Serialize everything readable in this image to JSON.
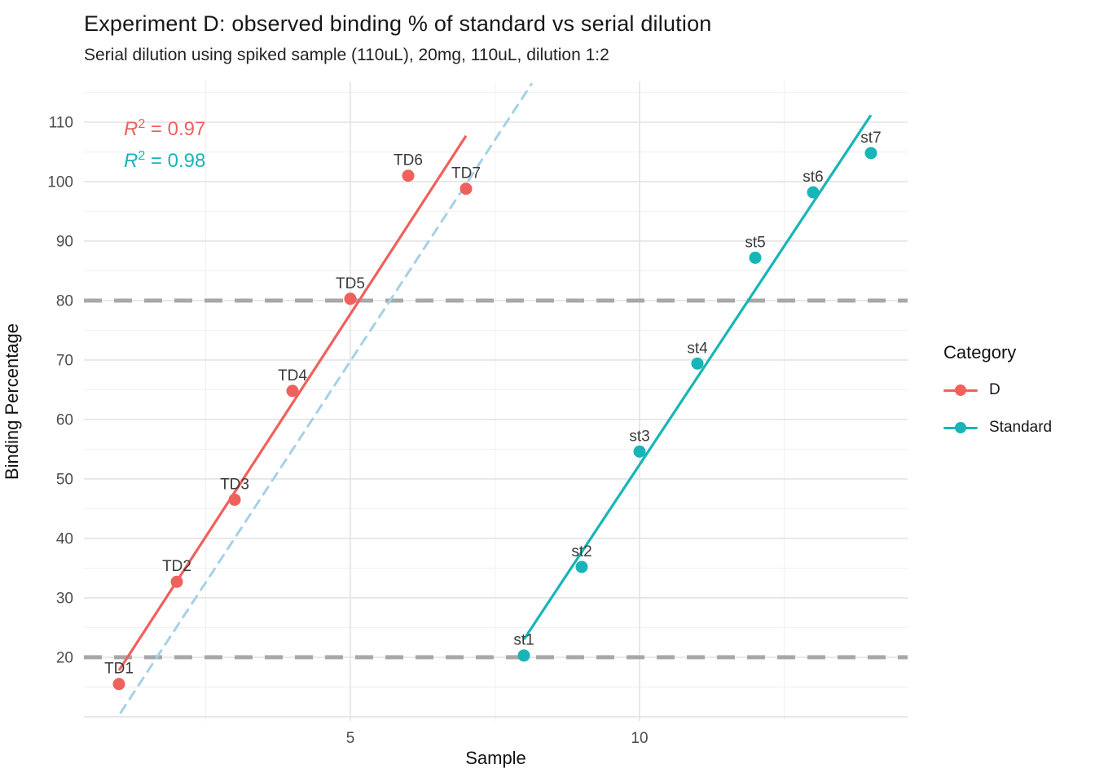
{
  "chart_data": {
    "type": "scatter",
    "title": "Experiment D: observed binding % of standard vs serial dilution",
    "subtitle": "Serial dilution using spiked sample (110uL), 20mg, 110uL, dilution 1:2",
    "xlabel": "Sample",
    "ylabel": "Binding Percentage",
    "x_domain": [
      0.394,
      14.634
    ],
    "y_domain": [
      9.3,
      116.85
    ],
    "x_ticks": [
      5,
      10
    ],
    "y_ticks": [
      20,
      30,
      40,
      50,
      60,
      70,
      80,
      90,
      100,
      110
    ],
    "grid": {
      "on": true,
      "x_major": [
        5,
        10
      ],
      "x_minor": [
        2.5,
        7.5,
        12.5
      ],
      "y_major": [
        10,
        20,
        30,
        40,
        50,
        60,
        70,
        80,
        90,
        100,
        110
      ],
      "y_minor": [
        15,
        25,
        35,
        45,
        55,
        65,
        75,
        85,
        95,
        105,
        115
      ]
    },
    "hlines": [
      {
        "y": 20,
        "style": "dashed",
        "color": "#A8A8A8"
      },
      {
        "y": 80,
        "style": "dashed",
        "color": "#A8A8A8"
      }
    ],
    "refline": {
      "x1": 1.03,
      "y1": 10.7,
      "x2": 8.13,
      "y2": 116.4,
      "style": "dashed",
      "color": "#A5D1E8"
    },
    "series": [
      {
        "name": "D",
        "color": "#F0605C",
        "r2": {
          "sym": "R",
          "exp": "2",
          "rest": " = 0.97"
        },
        "fit_line": {
          "x1": 1,
          "y1": 17.8,
          "x2": 7,
          "y2": 107.7
        },
        "points": [
          {
            "label": "TD1",
            "x": 1,
            "y": 15.5
          },
          {
            "label": "TD2",
            "x": 2,
            "y": 32.7
          },
          {
            "label": "TD3",
            "x": 3,
            "y": 46.5
          },
          {
            "label": "TD4",
            "x": 4,
            "y": 64.8
          },
          {
            "label": "TD5",
            "x": 5,
            "y": 80.3
          },
          {
            "label": "TD6",
            "x": 6,
            "y": 101.0
          },
          {
            "label": "TD7",
            "x": 7,
            "y": 98.8
          }
        ]
      },
      {
        "name": "Standard",
        "color": "#18B5B8",
        "r2": {
          "sym": "R",
          "exp": "2",
          "rest": " = 0.98"
        },
        "fit_line": {
          "x1": 8,
          "y1": 23.0,
          "x2": 14,
          "y2": 111.2
        },
        "points": [
          {
            "label": "st1",
            "x": 8,
            "y": 20.3
          },
          {
            "label": "st2",
            "x": 9,
            "y": 35.2
          },
          {
            "label": "st3",
            "x": 10,
            "y": 54.6
          },
          {
            "label": "st4",
            "x": 11,
            "y": 69.4
          },
          {
            "label": "st5",
            "x": 12,
            "y": 87.2
          },
          {
            "label": "st6",
            "x": 13,
            "y": 98.2
          },
          {
            "label": "st7",
            "x": 14,
            "y": 104.8
          }
        ]
      }
    ],
    "legend": {
      "title": "Category",
      "position": "right"
    }
  }
}
